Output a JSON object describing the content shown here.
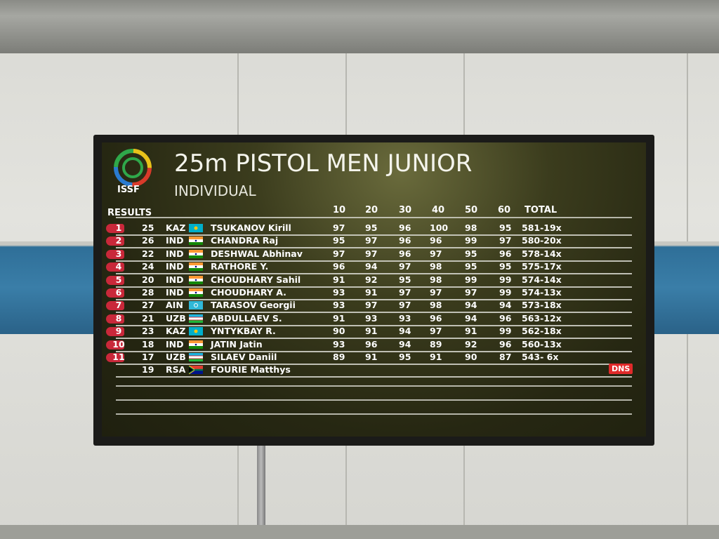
{
  "board": {
    "logo_text": "ISSF",
    "title": "25m PISTOL MEN JUNIOR",
    "subtitle": "INDIVIDUAL",
    "results_label": "RESULTS",
    "columns": [
      "10",
      "20",
      "30",
      "40",
      "50",
      "60",
      "TOTAL"
    ],
    "rows": [
      {
        "rank": "1",
        "bib": "25",
        "nation": "KAZ",
        "flag": "kaz-flag",
        "name": "TSUKANOV Kirill",
        "series": [
          "97",
          "95",
          "96",
          "100",
          "98",
          "95"
        ],
        "total": "581-19x"
      },
      {
        "rank": "2",
        "bib": "26",
        "nation": "IND",
        "flag": "ind-flag",
        "name": "CHANDRA Raj",
        "series": [
          "95",
          "97",
          "96",
          "96",
          "99",
          "97"
        ],
        "total": "580-20x"
      },
      {
        "rank": "3",
        "bib": "22",
        "nation": "IND",
        "flag": "ind-flag",
        "name": "DESHWAL Abhinav",
        "series": [
          "97",
          "97",
          "96",
          "97",
          "95",
          "96"
        ],
        "total": "578-14x"
      },
      {
        "rank": "4",
        "bib": "24",
        "nation": "IND",
        "flag": "ind-flag",
        "name": "RATHORE Y.",
        "series": [
          "96",
          "94",
          "97",
          "98",
          "95",
          "95"
        ],
        "total": "575-17x"
      },
      {
        "rank": "5",
        "bib": "20",
        "nation": "IND",
        "flag": "ind-flag",
        "name": "CHOUDHARY Sahil",
        "series": [
          "91",
          "92",
          "95",
          "98",
          "99",
          "99"
        ],
        "total": "574-14x"
      },
      {
        "rank": "6",
        "bib": "28",
        "nation": "IND",
        "flag": "ind-flag",
        "name": "CHOUDHARY A.",
        "series": [
          "93",
          "91",
          "97",
          "97",
          "97",
          "99"
        ],
        "total": "574-13x"
      },
      {
        "rank": "7",
        "bib": "27",
        "nation": "AIN",
        "flag": "ain-flag",
        "name": "TARASOV Georgii",
        "series": [
          "93",
          "97",
          "97",
          "98",
          "94",
          "94"
        ],
        "total": "573-18x"
      },
      {
        "rank": "8",
        "bib": "21",
        "nation": "UZB",
        "flag": "uzb-flag",
        "name": "ABDULLAEV S.",
        "series": [
          "91",
          "93",
          "93",
          "96",
          "94",
          "96"
        ],
        "total": "563-12x"
      },
      {
        "rank": "9",
        "bib": "23",
        "nation": "KAZ",
        "flag": "kaz-flag",
        "name": "YNTYKBAY R.",
        "series": [
          "90",
          "91",
          "94",
          "97",
          "91",
          "99"
        ],
        "total": "562-18x"
      },
      {
        "rank": "10",
        "bib": "18",
        "nation": "IND",
        "flag": "ind-flag",
        "name": "JATIN Jatin",
        "series": [
          "93",
          "96",
          "94",
          "89",
          "92",
          "96"
        ],
        "total": "560-13x"
      },
      {
        "rank": "11",
        "bib": "17",
        "nation": "UZB",
        "flag": "uzb-flag",
        "name": "SILAEV Daniil",
        "series": [
          "89",
          "91",
          "95",
          "91",
          "90",
          "87"
        ],
        "total": "543- 6x"
      },
      {
        "rank": "",
        "bib": "19",
        "nation": "RSA",
        "flag": "rsa-flag",
        "name": "FOURIE Matthys",
        "series": [
          "",
          "",
          "",
          "",
          "",
          ""
        ],
        "total": "",
        "status": "DNS"
      }
    ]
  },
  "colors": {
    "rank_badge": "#c9283a",
    "dns": "#e02a2a",
    "screen": "#2e2f16"
  }
}
